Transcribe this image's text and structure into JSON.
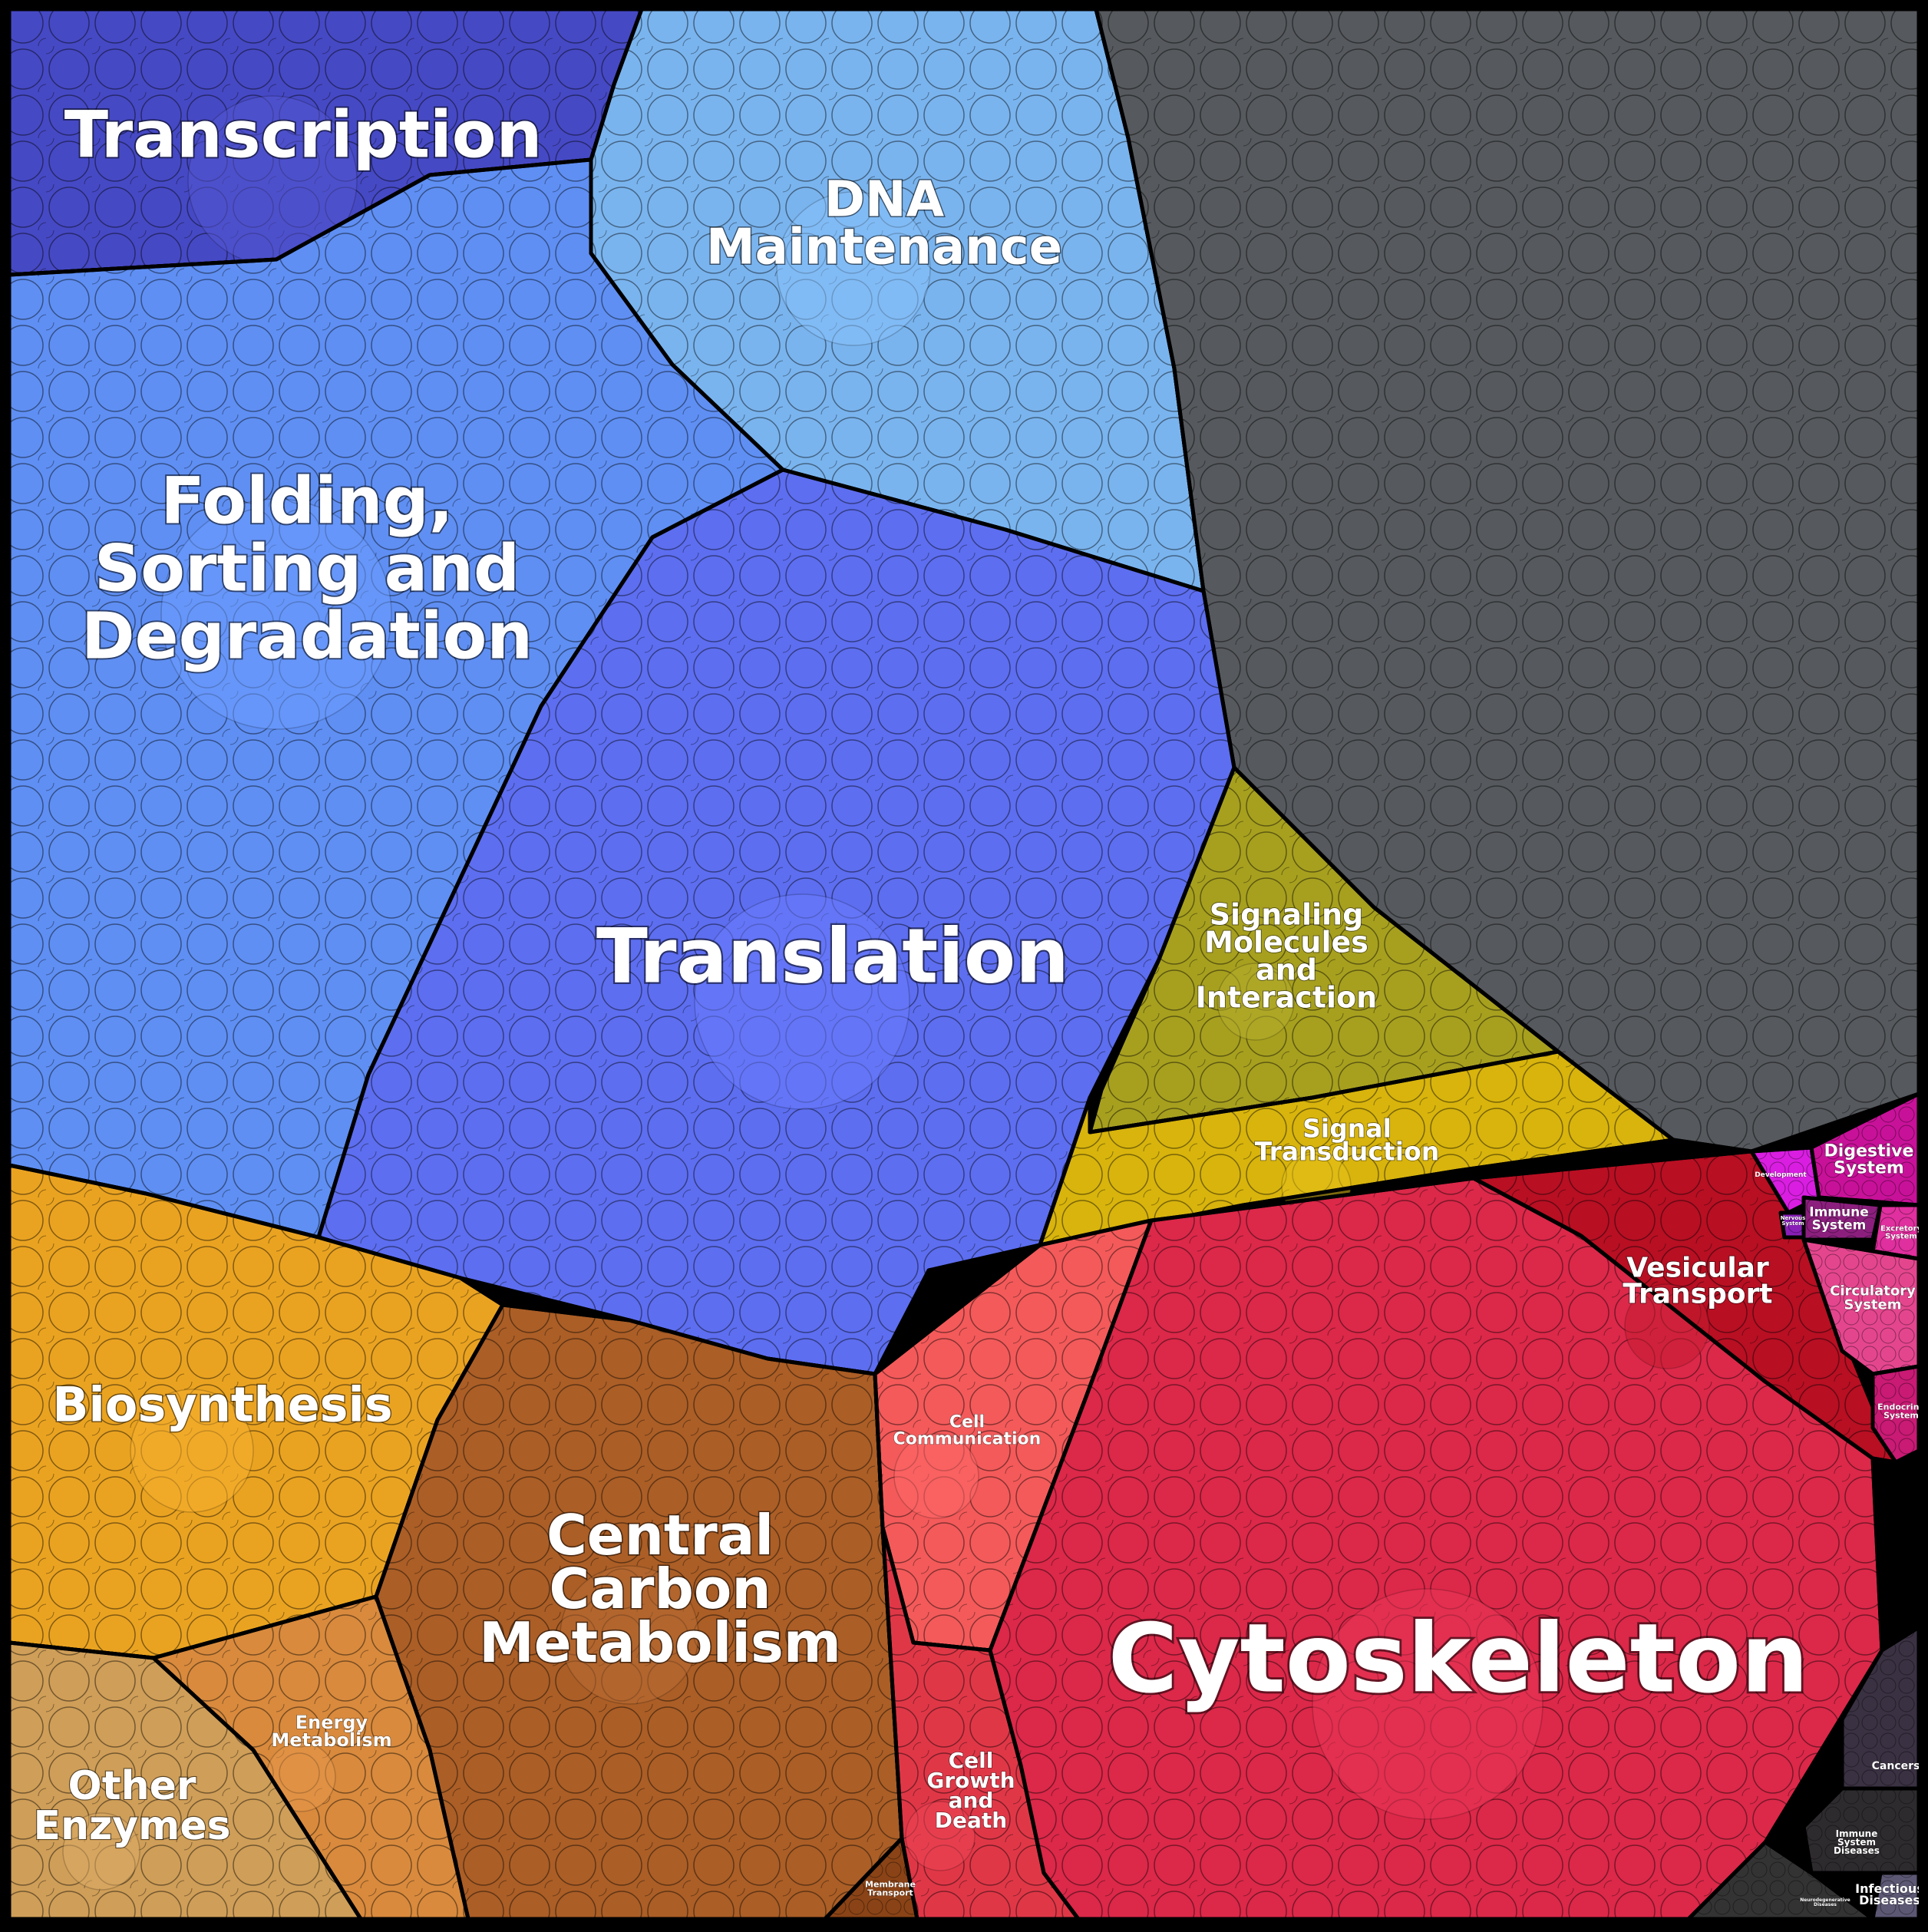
{
  "chart_data": {
    "type": "voronoi-treemap",
    "title": "",
    "regions": [
      {
        "id": "transcription",
        "label": "Transcription",
        "lines": [
          "Transcription"
        ],
        "color": "#4649c4",
        "size": 8
      },
      {
        "id": "dna-maintenance",
        "label": "DNA Maintenance",
        "lines": [
          "DNA",
          "Maintenance"
        ],
        "color": "#7ab4ee",
        "size": 7
      },
      {
        "id": "unclassified",
        "label": "",
        "lines": [],
        "color": "#56595d",
        "size": 26
      },
      {
        "id": "folding-sorting-degradation",
        "label": "Folding, Sorting and Degradation",
        "lines": [
          "Folding,",
          "Sorting and",
          "Degradation"
        ],
        "color": "#5f8ff3",
        "size": 12
      },
      {
        "id": "translation",
        "label": "Translation",
        "lines": [
          "Translation"
        ],
        "color": "#5d6ef0",
        "size": 11
      },
      {
        "id": "signaling-molecules",
        "label": "Signaling Molecules and Interaction",
        "lines": [
          "Signaling",
          "Molecules",
          "and",
          "Interaction"
        ],
        "color": "#a7a01f",
        "size": 2
      },
      {
        "id": "signal-transduction",
        "label": "Signal Transduction",
        "lines": [
          "Signal",
          "Transduction"
        ],
        "color": "#d8b40d",
        "size": 1.5
      },
      {
        "id": "biosynthesis",
        "label": "Biosynthesis",
        "lines": [
          "Biosynthesis"
        ],
        "color": "#eaa321",
        "size": 5
      },
      {
        "id": "central-carbon-metabolism",
        "label": "Central Carbon Metabolism",
        "lines": [
          "Central",
          "Carbon",
          "Metabolism"
        ],
        "color": "#ab5e26",
        "size": 6
      },
      {
        "id": "energy-metabolism",
        "label": "Energy Metabolism",
        "lines": [
          "Energy",
          "Metabolism"
        ],
        "color": "#d98a3d",
        "size": 1.5
      },
      {
        "id": "other-enzymes",
        "label": "Other Enzymes",
        "lines": [
          "Other",
          "Enzymes"
        ],
        "color": "#cf9e58",
        "size": 2
      },
      {
        "id": "membrane-transport",
        "label": "Membrane Transport",
        "lines": [
          "Membrane",
          "Transport"
        ],
        "color": "#8a4316",
        "size": 0.3
      },
      {
        "id": "cell-communication",
        "label": "Cell Communication",
        "lines": [
          "Cell",
          "Communication"
        ],
        "color": "#f45a5a",
        "size": 2.5
      },
      {
        "id": "cell-growth-death",
        "label": "Cell Growth and Death",
        "lines": [
          "Cell",
          "Growth",
          "and",
          "Death"
        ],
        "color": "#e03747",
        "size": 1.5
      },
      {
        "id": "cytoskeleton",
        "label": "Cytoskeleton",
        "lines": [
          "Cytoskeleton"
        ],
        "color": "#dc2849",
        "size": 12
      },
      {
        "id": "vesicular-transport",
        "label": "Vesicular Transport",
        "lines": [
          "Vesicular",
          "Transport"
        ],
        "color": "#b80f23",
        "size": 2.5
      },
      {
        "id": "development",
        "label": "Development",
        "lines": [
          "Development"
        ],
        "color": "#d91ee1",
        "size": 0.2
      },
      {
        "id": "digestive-system",
        "label": "Digestive System",
        "lines": [
          "Digestive",
          "System"
        ],
        "color": "#c81199",
        "size": 0.3
      },
      {
        "id": "nervous-system",
        "label": "Nervous System",
        "lines": [
          "Nervous",
          "System"
        ],
        "color": "#8a1fb8",
        "size": 0.05
      },
      {
        "id": "immune-system",
        "label": "Immune System",
        "lines": [
          "Immune",
          "System"
        ],
        "color": "#8c1f7e",
        "size": 0.2
      },
      {
        "id": "excretory-system",
        "label": "Excretory System",
        "lines": [
          "Excretory",
          "System"
        ],
        "color": "#e02f9e",
        "size": 0.1
      },
      {
        "id": "circulatory-system",
        "label": "Circulatory System",
        "lines": [
          "Circulatory",
          "System"
        ],
        "color": "#e4468e",
        "size": 0.4
      },
      {
        "id": "endocrine-system",
        "label": "Endocrine System",
        "lines": [
          "Endocrine",
          "System"
        ],
        "color": "#c91a74",
        "size": 0.2
      },
      {
        "id": "cancers",
        "label": "Cancers",
        "lines": [
          "Cancers"
        ],
        "color": "#3a3142",
        "size": 0.3
      },
      {
        "id": "immune-system-diseases",
        "label": "Immune System Diseases",
        "lines": [
          "Immune",
          "System",
          "Diseases"
        ],
        "color": "#2e2b2e",
        "size": 0.15
      },
      {
        "id": "infectious-diseases",
        "label": "Infectious Diseases",
        "lines": [
          "Infectious",
          "Diseases"
        ],
        "color": "#5c5874",
        "size": 0.15
      },
      {
        "id": "neurodegenerative-diseases",
        "label": "Neurodegenerative Diseases",
        "lines": [
          "Neurodegenerative",
          "Diseases"
        ],
        "color": "#333333",
        "size": 0.05
      }
    ]
  }
}
